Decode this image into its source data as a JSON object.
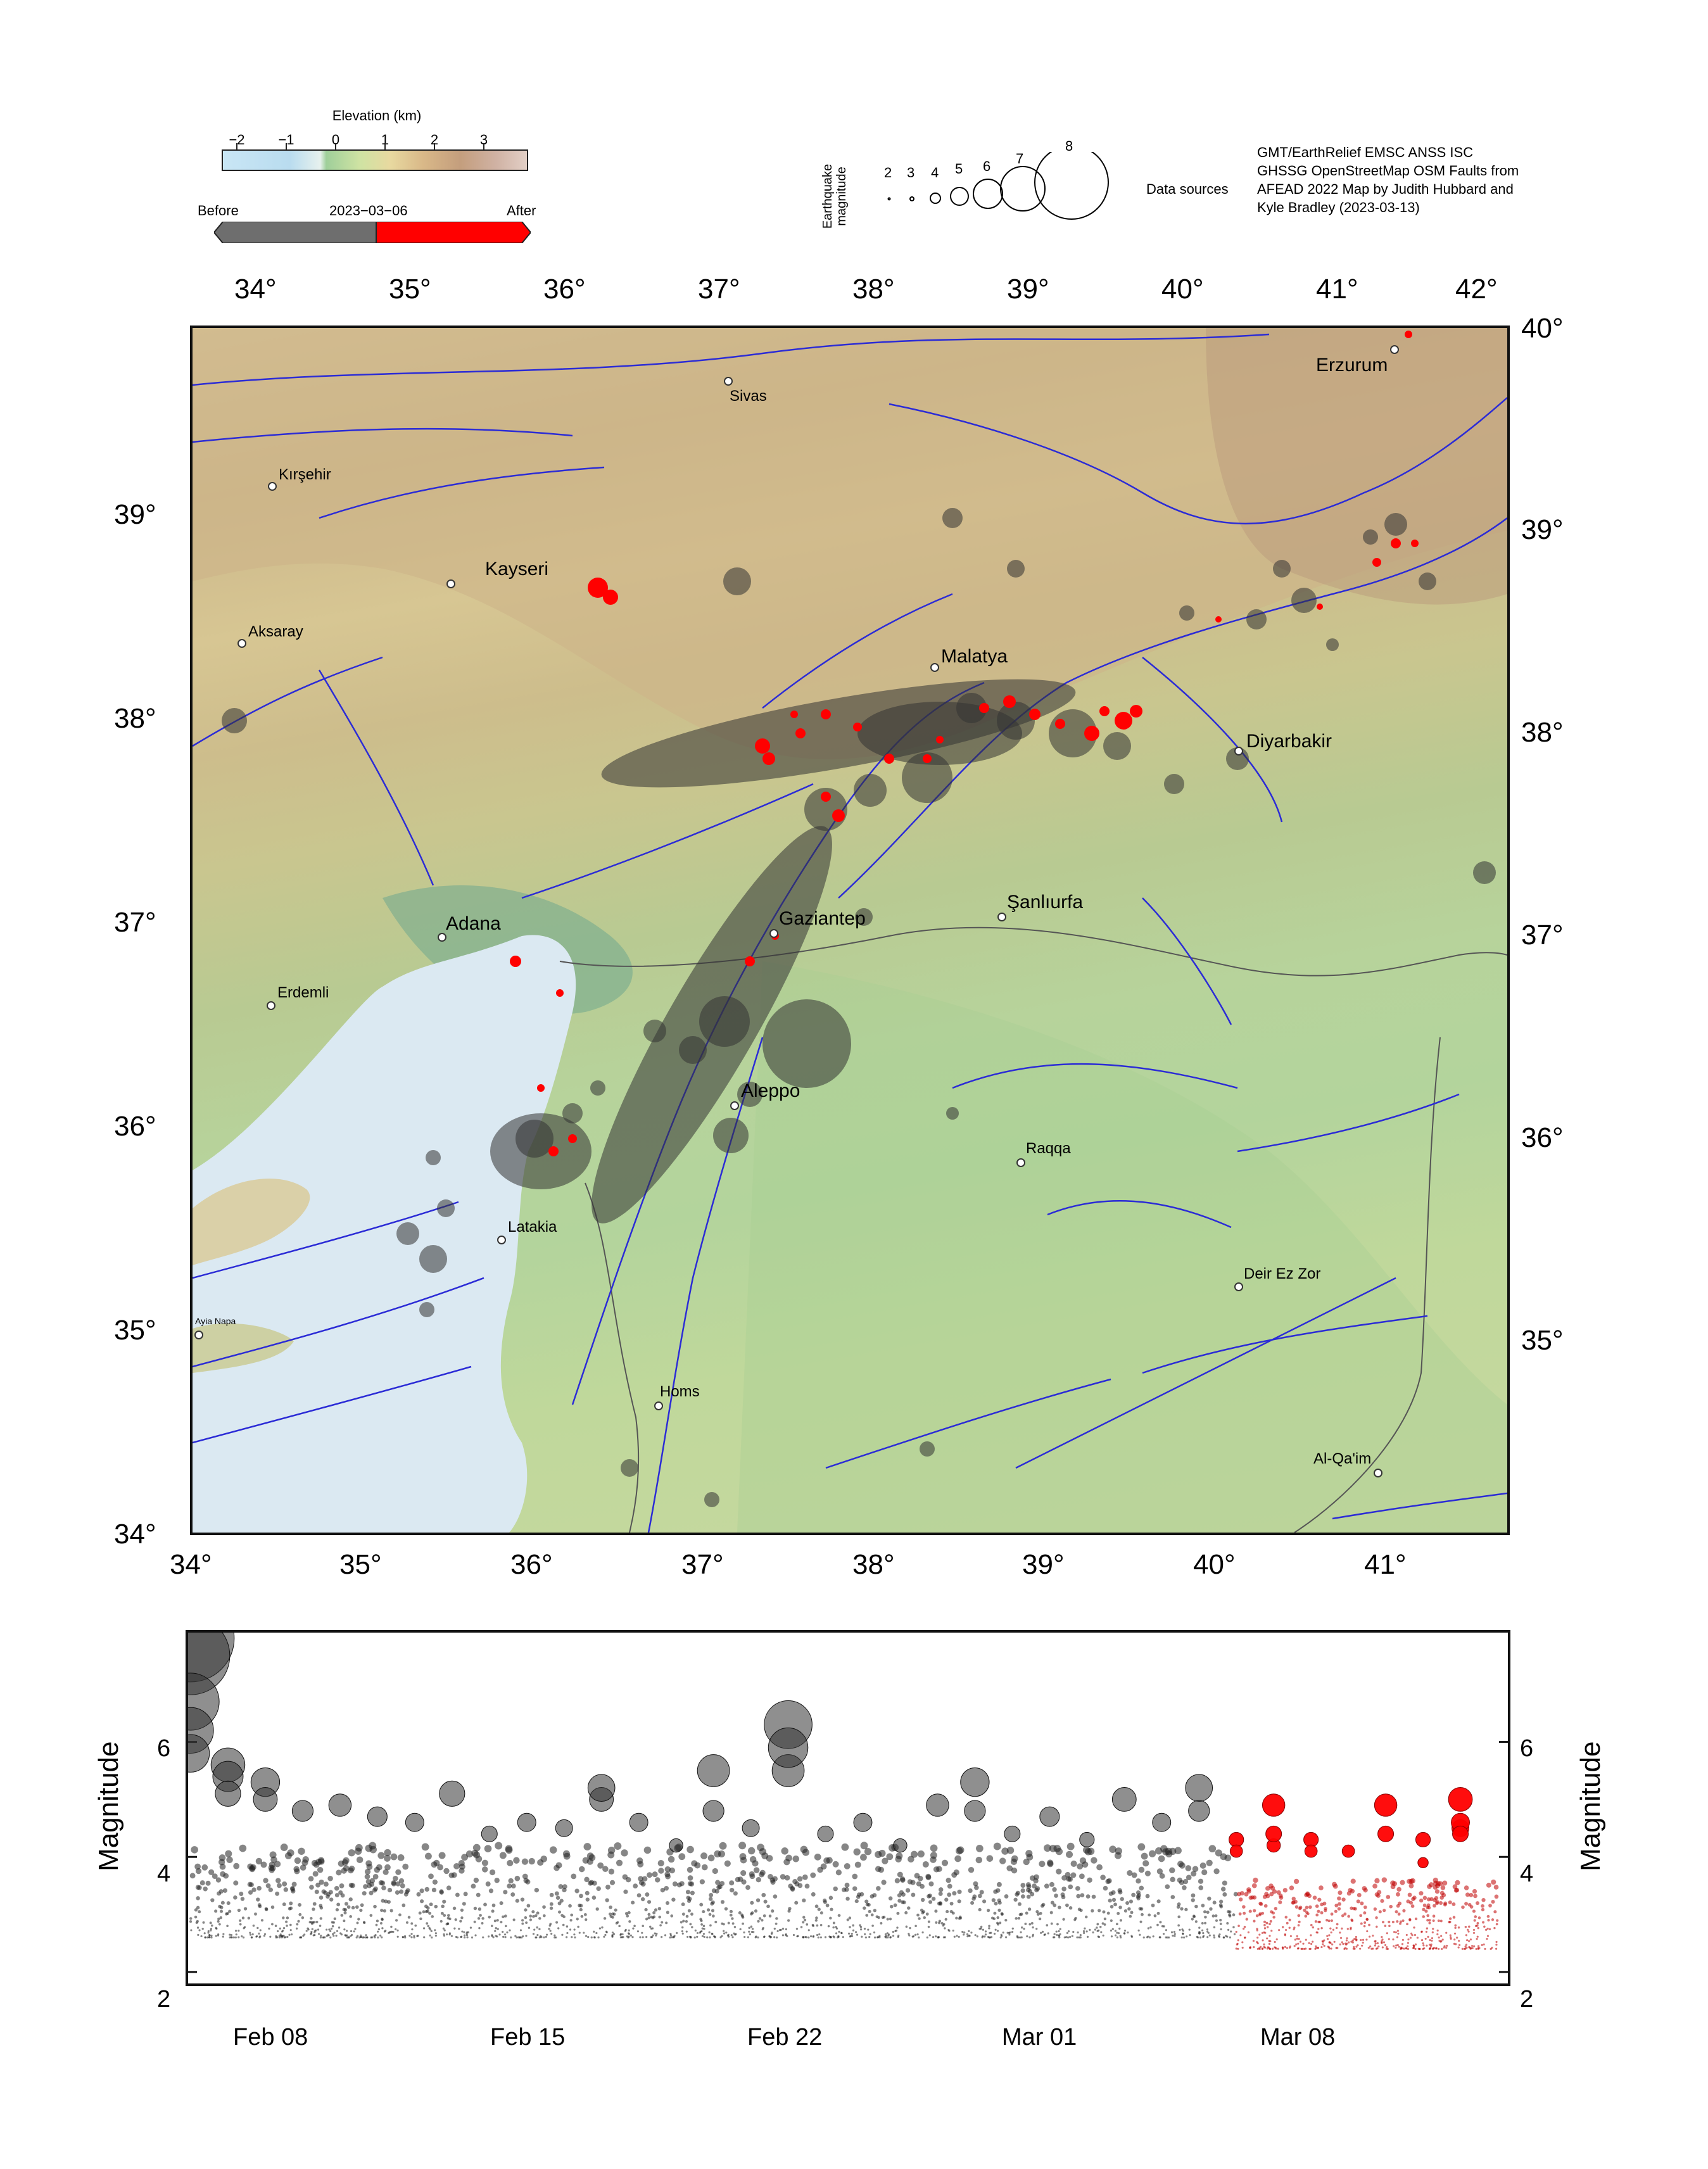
{
  "legend": {
    "elevation": {
      "title": "Elevation (km)",
      "ticks": [
        "−2",
        "−1",
        "0",
        "1",
        "2",
        "3"
      ]
    },
    "timing": {
      "before_label": "Before",
      "date_label": "2023−03−06",
      "after_label": "After",
      "before_color": "#6e6e6e",
      "after_color": "#ff0000"
    },
    "magnitude": {
      "axis_label": "Earthquake magnitude",
      "values": [
        "2",
        "3",
        "4",
        "5",
        "6",
        "7",
        "8"
      ]
    },
    "data_sources_label": "Data sources",
    "data_sources_text": "GMT/EarthRelief EMSC ANSS ISC GHSSG OpenStreetMap OSM Faults from AFEAD 2022 Map by Judith Hubbard and Kyle Bradley (2023-03-13)"
  },
  "map": {
    "top_lon_ticks": [
      "34°",
      "35°",
      "36°",
      "37°",
      "38°",
      "39°",
      "40°",
      "41°",
      "42°"
    ],
    "bottom_lon_ticks": [
      "34°",
      "35°",
      "36°",
      "37°",
      "38°",
      "39°",
      "40°",
      "41°"
    ],
    "left_lat_ticks": [
      "39°",
      "38°",
      "37°",
      "36°",
      "35°",
      "34°"
    ],
    "right_lat_ticks": [
      "40°",
      "39°",
      "38°",
      "37°",
      "36°",
      "35°"
    ],
    "cities": [
      {
        "name": "Sivas"
      },
      {
        "name": "Erzurum"
      },
      {
        "name": "Kırşehir"
      },
      {
        "name": "Kayseri"
      },
      {
        "name": "Aksaray"
      },
      {
        "name": "Malatya"
      },
      {
        "name": "Diyarbakir"
      },
      {
        "name": "Adana"
      },
      {
        "name": "Gaziantep"
      },
      {
        "name": "Şanlıurfa"
      },
      {
        "name": "Erdemli"
      },
      {
        "name": "Aleppo"
      },
      {
        "name": "Raqqa"
      },
      {
        "name": "Latakia"
      },
      {
        "name": "Deir Ez Zor"
      },
      {
        "name": "Ayia Napa"
      },
      {
        "name": "Homs"
      },
      {
        "name": "Al-Qa'im"
      }
    ],
    "colors": {
      "fault": "#2b2bd6",
      "sea": "#dbe9f2",
      "quake_before": "#333333",
      "quake_after": "#ff0000"
    }
  },
  "chart_data": {
    "type": "scatter",
    "xlabel": "",
    "ylabel": "Magnitude",
    "x_ticks": [
      "Feb 08",
      "Feb 15",
      "Feb 22",
      "Mar 01",
      "Mar 08"
    ],
    "y_ticks": [
      "2",
      "4",
      "6"
    ],
    "ylim": [
      1.8,
      7.9
    ],
    "xlim": [
      "2023-02-06",
      "2023-03-13"
    ],
    "series": [
      {
        "name": "Before",
        "color": "#333333",
        "points": [
          {
            "x": "2023-02-06",
            "y": 7.8
          },
          {
            "x": "2023-02-06",
            "y": 7.5
          },
          {
            "x": "2023-02-06",
            "y": 6.7
          },
          {
            "x": "2023-02-06",
            "y": 6.2
          },
          {
            "x": "2023-02-06",
            "y": 5.8
          },
          {
            "x": "2023-02-07",
            "y": 5.6
          },
          {
            "x": "2023-02-07",
            "y": 5.4
          },
          {
            "x": "2023-02-07",
            "y": 5.1
          },
          {
            "x": "2023-02-08",
            "y": 5.3
          },
          {
            "x": "2023-02-08",
            "y": 5.0
          },
          {
            "x": "2023-02-09",
            "y": 4.8
          },
          {
            "x": "2023-02-10",
            "y": 4.9
          },
          {
            "x": "2023-02-11",
            "y": 4.7
          },
          {
            "x": "2023-02-12",
            "y": 4.6
          },
          {
            "x": "2023-02-13",
            "y": 5.1
          },
          {
            "x": "2023-02-14",
            "y": 4.4
          },
          {
            "x": "2023-02-15",
            "y": 4.6
          },
          {
            "x": "2023-02-16",
            "y": 4.5
          },
          {
            "x": "2023-02-17",
            "y": 5.0
          },
          {
            "x": "2023-02-17",
            "y": 5.2
          },
          {
            "x": "2023-02-18",
            "y": 4.6
          },
          {
            "x": "2023-02-19",
            "y": 4.2
          },
          {
            "x": "2023-02-20",
            "y": 5.5
          },
          {
            "x": "2023-02-20",
            "y": 4.8
          },
          {
            "x": "2023-02-21",
            "y": 4.5
          },
          {
            "x": "2023-02-22",
            "y": 5.5
          },
          {
            "x": "2023-02-22",
            "y": 6.3
          },
          {
            "x": "2023-02-22",
            "y": 5.9
          },
          {
            "x": "2023-02-23",
            "y": 4.4
          },
          {
            "x": "2023-02-24",
            "y": 4.6
          },
          {
            "x": "2023-02-25",
            "y": 4.2
          },
          {
            "x": "2023-02-26",
            "y": 4.9
          },
          {
            "x": "2023-02-27",
            "y": 4.8
          },
          {
            "x": "2023-02-27",
            "y": 5.3
          },
          {
            "x": "2023-02-28",
            "y": 4.4
          },
          {
            "x": "2023-03-01",
            "y": 4.7
          },
          {
            "x": "2023-03-02",
            "y": 4.3
          },
          {
            "x": "2023-03-03",
            "y": 5.0
          },
          {
            "x": "2023-03-04",
            "y": 4.6
          },
          {
            "x": "2023-03-05",
            "y": 5.2
          },
          {
            "x": "2023-03-05",
            "y": 4.8
          }
        ]
      },
      {
        "name": "After",
        "color": "#ff0000",
        "points": [
          {
            "x": "2023-03-06",
            "y": 4.3
          },
          {
            "x": "2023-03-06",
            "y": 4.1
          },
          {
            "x": "2023-03-07",
            "y": 4.2
          },
          {
            "x": "2023-03-07",
            "y": 4.9
          },
          {
            "x": "2023-03-07",
            "y": 4.4
          },
          {
            "x": "2023-03-08",
            "y": 4.3
          },
          {
            "x": "2023-03-08",
            "y": 4.1
          },
          {
            "x": "2023-03-09",
            "y": 4.1
          },
          {
            "x": "2023-03-10",
            "y": 4.9
          },
          {
            "x": "2023-03-10",
            "y": 4.4
          },
          {
            "x": "2023-03-11",
            "y": 3.9
          },
          {
            "x": "2023-03-11",
            "y": 4.3
          },
          {
            "x": "2023-03-12",
            "y": 4.5
          },
          {
            "x": "2023-03-12",
            "y": 5.0
          },
          {
            "x": "2023-03-12",
            "y": 4.6
          },
          {
            "x": "2023-03-12",
            "y": 4.4
          }
        ]
      }
    ]
  }
}
